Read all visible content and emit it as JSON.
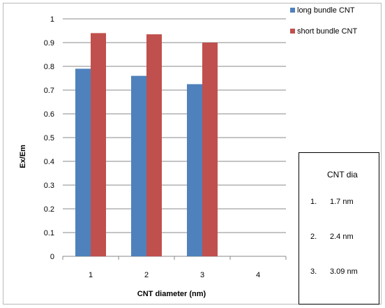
{
  "chart_data": {
    "type": "bar",
    "title": "",
    "xlabel": "CNT diameter (nm)",
    "ylabel": "Ex/Em",
    "categories": [
      "1",
      "2",
      "3",
      "4"
    ],
    "ylim": [
      0,
      1
    ],
    "yticks": [
      "0",
      "0.1",
      "0.2",
      "0.3",
      "0.4",
      "0.5",
      "0.6",
      "0.7",
      "0.8",
      "0.9",
      "1"
    ],
    "grid": "horizontal",
    "legend_position": "right",
    "series": [
      {
        "name": "long bundle CNT",
        "color": "#4f81bd",
        "values": [
          0.79,
          0.76,
          0.725,
          null
        ]
      },
      {
        "name": "short bundle CNT",
        "color": "#c0504d",
        "values": [
          0.94,
          0.935,
          0.9,
          null
        ]
      }
    ]
  },
  "note": {
    "title": "CNT dia",
    "items": [
      {
        "num": "1.",
        "text": "1.7 nm"
      },
      {
        "num": "2.",
        "text": "2.4 nm"
      },
      {
        "num": "3.",
        "text": "3.09 nm"
      }
    ]
  }
}
